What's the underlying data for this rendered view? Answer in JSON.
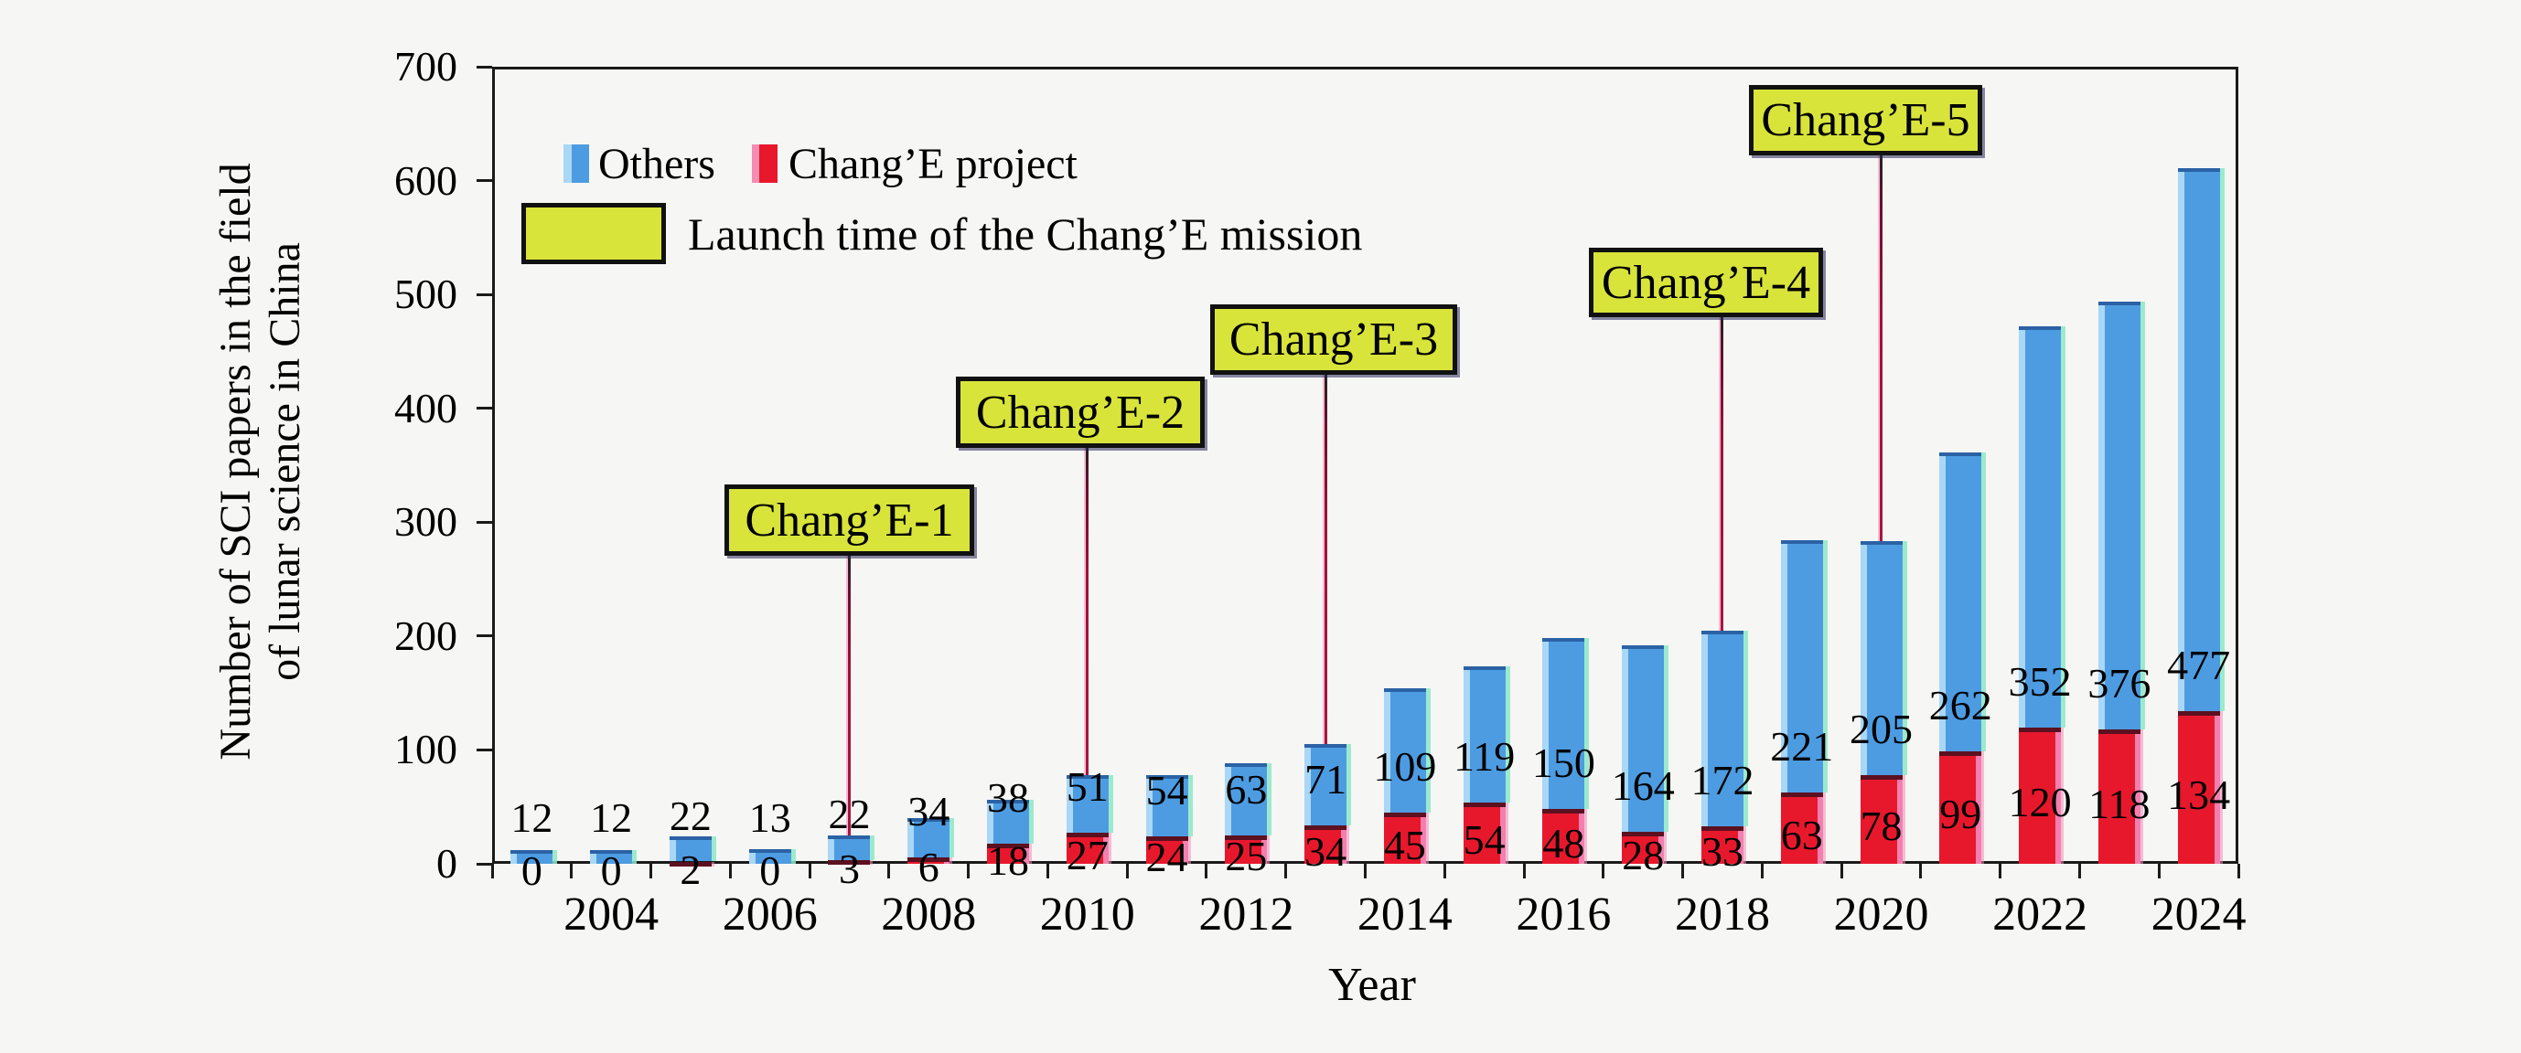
{
  "chart_data": {
    "type": "bar",
    "stacked": true,
    "title": "",
    "xlabel": "Year",
    "ylabel": "Number of SCI papers in the field of lunar science in China",
    "ylim": [
      0,
      700
    ],
    "yticks": [
      0,
      100,
      200,
      300,
      400,
      500,
      600,
      700
    ],
    "xtick_labels": [
      "2004",
      "2006",
      "2008",
      "2010",
      "2012",
      "2014",
      "2016",
      "2018",
      "2020",
      "2022",
      "2024"
    ],
    "grid": false,
    "legend_position": "top-left-inside",
    "categories": [
      2003,
      2004,
      2005,
      2006,
      2007,
      2008,
      2009,
      2010,
      2011,
      2012,
      2013,
      2014,
      2015,
      2016,
      2017,
      2018,
      2019,
      2020,
      2021,
      2022,
      2023,
      2024
    ],
    "series": [
      {
        "name": "Chang’E project",
        "color": "#e8182c",
        "values": [
          0,
          0,
          2,
          0,
          3,
          6,
          18,
          27,
          24,
          25,
          34,
          45,
          54,
          48,
          28,
          33,
          63,
          78,
          99,
          120,
          118,
          134
        ]
      },
      {
        "name": "Others",
        "color": "#4d9ce2",
        "values": [
          12,
          12,
          22,
          13,
          22,
          34,
          38,
          51,
          54,
          63,
          71,
          109,
          119,
          150,
          164,
          172,
          221,
          205,
          262,
          352,
          376,
          477
        ]
      }
    ],
    "annotations": [
      {
        "label": "Chang’E-1",
        "year": 2007
      },
      {
        "label": "Chang’E-2",
        "year": 2010
      },
      {
        "label": "Chang’E-3",
        "year": 2013
      },
      {
        "label": "Chang’E-4",
        "year": 2018
      },
      {
        "label": "Chang’E-5",
        "year": 2020
      }
    ]
  },
  "ui": {
    "legend": {
      "others": "Others",
      "change": "Chang’E project",
      "launch": "Launch time of the Chang’E mission"
    },
    "xlabel": "Year",
    "ylabel_line1": "Number of SCI papers in the field",
    "ylabel_line2": "of lunar science in China",
    "colors": {
      "others_fill": "#4d9ce2",
      "change_fill": "#e8182c",
      "launch_box": "#d9e43b",
      "annotation_line": "#9e1238",
      "axis": "#1a1a1a",
      "background": "#f6f6f5"
    }
  }
}
